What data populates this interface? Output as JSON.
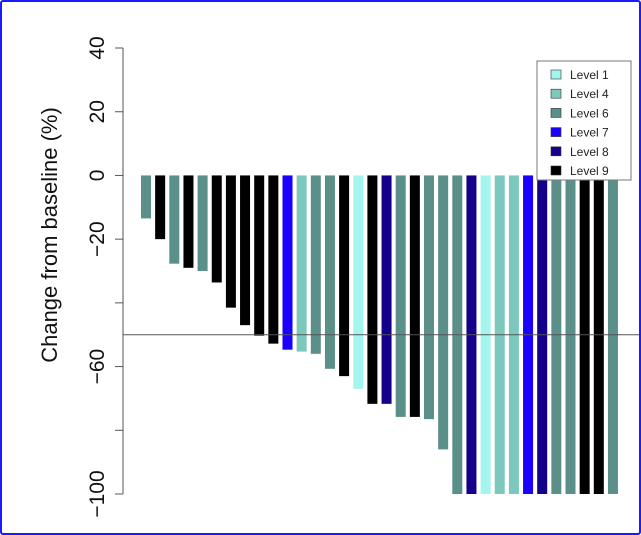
{
  "chart_data": {
    "type": "bar",
    "title": "",
    "xlabel": "",
    "ylabel": "Change from baseline (%)",
    "ylim": [
      -100,
      40
    ],
    "yticks": [
      40,
      20,
      0,
      -20,
      -40,
      -60,
      -80,
      -100
    ],
    "ytick_labels": [
      "40",
      "20",
      "0",
      "−20",
      "",
      "−60",
      "",
      "−100"
    ],
    "reference_line": -50,
    "legend": {
      "placement": "top-right",
      "entries": [
        {
          "name": "Level 1",
          "color": "#a3f5ee"
        },
        {
          "name": "Level 4",
          "color": "#7cc8bd"
        },
        {
          "name": "Level 6",
          "color": "#5b8f89"
        },
        {
          "name": "Level 7",
          "color": "#1a00ff"
        },
        {
          "name": "Level 8",
          "color": "#15008c"
        },
        {
          "name": "Level 9",
          "color": "#000000"
        }
      ]
    },
    "bars": [
      {
        "level": "Level 6",
        "value": -13.5
      },
      {
        "level": "Level 9",
        "value": -20
      },
      {
        "level": "Level 6",
        "value": -27.7
      },
      {
        "level": "Level 9",
        "value": -29
      },
      {
        "level": "Level 6",
        "value": -30
      },
      {
        "level": "Level 9",
        "value": -33.6
      },
      {
        "level": "Level 9",
        "value": -41.5
      },
      {
        "level": "Level 9",
        "value": -47
      },
      {
        "level": "Level 9",
        "value": -50.3
      },
      {
        "level": "Level 9",
        "value": -52.8
      },
      {
        "level": "Level 7",
        "value": -54.7
      },
      {
        "level": "Level 4",
        "value": -55.3
      },
      {
        "level": "Level 6",
        "value": -56
      },
      {
        "level": "Level 6",
        "value": -60.7
      },
      {
        "level": "Level 9",
        "value": -63
      },
      {
        "level": "Level 1",
        "value": -67
      },
      {
        "level": "Level 9",
        "value": -71.7
      },
      {
        "level": "Level 8",
        "value": -71.7
      },
      {
        "level": "Level 6",
        "value": -75.8
      },
      {
        "level": "Level 9",
        "value": -75.8
      },
      {
        "level": "Level 6",
        "value": -76.5
      },
      {
        "level": "Level 6",
        "value": -86
      },
      {
        "level": "Level 6",
        "value": -100
      },
      {
        "level": "Level 8",
        "value": -100
      },
      {
        "level": "Level 1",
        "value": -100
      },
      {
        "level": "Level 4",
        "value": -100
      },
      {
        "level": "Level 4",
        "value": -100
      },
      {
        "level": "Level 7",
        "value": -100
      },
      {
        "level": "Level 8",
        "value": -100
      },
      {
        "level": "Level 6",
        "value": -100
      },
      {
        "level": "Level 6",
        "value": -100
      },
      {
        "level": "Level 9",
        "value": -100
      },
      {
        "level": "Level 9",
        "value": -100
      },
      {
        "level": "Level 6",
        "value": -100
      }
    ]
  }
}
